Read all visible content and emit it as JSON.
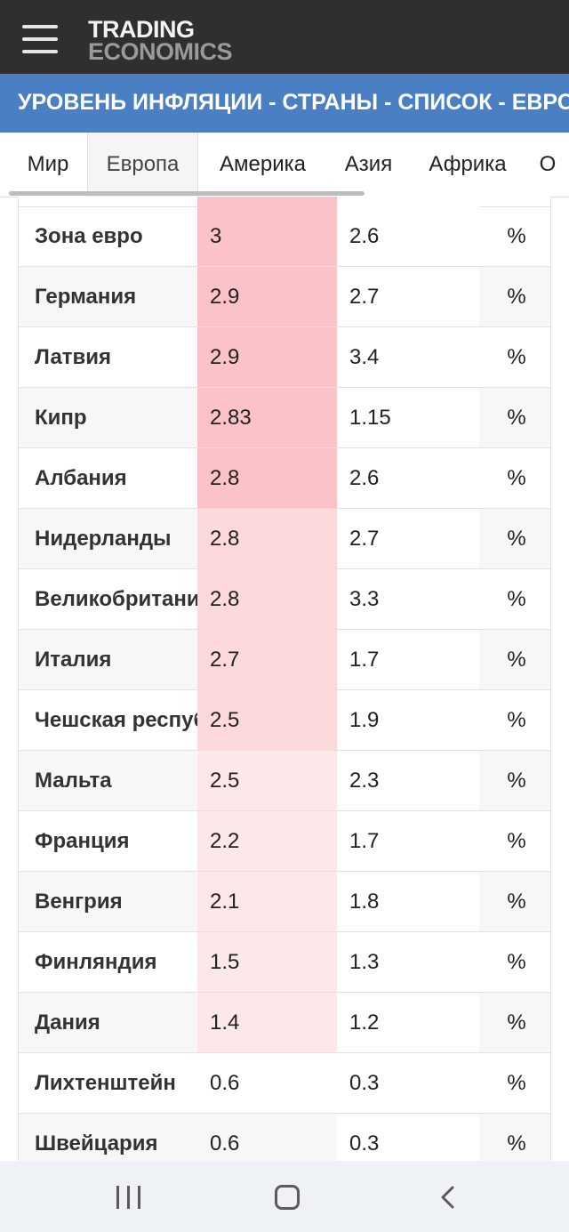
{
  "header": {
    "logo_line1": "TRADING",
    "logo_line2": "ECONOMICS",
    "menu_icon": "hamburger-menu-icon"
  },
  "page_title": "УРОВЕНЬ ИНФЛЯЦИИ - СТРАНЫ - СПИСОК - ЕВРОПА",
  "tabs": [
    {
      "label": "Мир",
      "active": false
    },
    {
      "label": "Европа",
      "active": true
    },
    {
      "label": "Америка",
      "active": false
    },
    {
      "label": "Азия",
      "active": false
    },
    {
      "label": "Африка",
      "active": false
    },
    {
      "label": "О",
      "active": false
    }
  ],
  "table": {
    "rows": [
      {
        "country": "Зона евро",
        "last": "3",
        "previous": "2.6",
        "unit": "%"
      },
      {
        "country": "Германия",
        "last": "2.9",
        "previous": "2.7",
        "unit": "%"
      },
      {
        "country": "Латвия",
        "last": "2.9",
        "previous": "3.4",
        "unit": "%"
      },
      {
        "country": "Кипр",
        "last": "2.83",
        "previous": "1.15",
        "unit": "%"
      },
      {
        "country": "Албания",
        "last": "2.8",
        "previous": "2.6",
        "unit": "%"
      },
      {
        "country": "Нидерланды",
        "last": "2.8",
        "previous": "2.7",
        "unit": "%"
      },
      {
        "country": "Великобритания",
        "last": "2.8",
        "previous": "3.3",
        "unit": "%"
      },
      {
        "country": "Италия",
        "last": "2.7",
        "previous": "1.7",
        "unit": "%"
      },
      {
        "country": "Чешская республика",
        "last": "2.5",
        "previous": "1.9",
        "unit": "%"
      },
      {
        "country": "Мальта",
        "last": "2.5",
        "previous": "2.3",
        "unit": "%"
      },
      {
        "country": "Франция",
        "last": "2.2",
        "previous": "1.7",
        "unit": "%"
      },
      {
        "country": "Венгрия",
        "last": "2.1",
        "previous": "1.8",
        "unit": "%"
      },
      {
        "country": "Финляндия",
        "last": "1.5",
        "previous": "1.3",
        "unit": "%"
      },
      {
        "country": "Дания",
        "last": "1.4",
        "previous": "1.2",
        "unit": "%"
      },
      {
        "country": "Лихтенштейн",
        "last": "0.6",
        "previous": "0.3",
        "unit": "%"
      },
      {
        "country": "Швейцария",
        "last": "0.6",
        "previous": "0.3",
        "unit": "%"
      }
    ]
  },
  "colors": {
    "header_bg": "#2f2f2f",
    "title_bg": "#4a7fc4",
    "heat_strong": "#fbc3c7",
    "heat_medium": "#fdd9db",
    "heat_light": "#fde8e9"
  },
  "system_nav": {
    "recent_icon": "recent-apps-icon",
    "home_icon": "home-icon",
    "back_icon": "back-icon"
  }
}
